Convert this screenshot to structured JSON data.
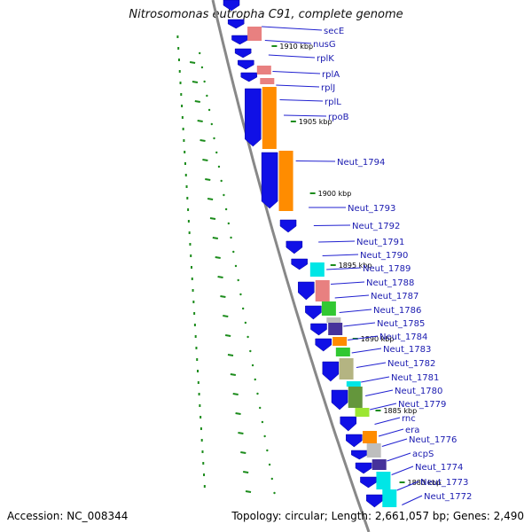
{
  "title": "Nitrosomonas eutropha C91, complete genome",
  "accession": "Accession: NC_008344",
  "summary": "Topology: circular; Length: 2,661,057 bp; Genes: 2,490",
  "colors": {
    "blue": "#1010e6",
    "orange": "#ff8c00",
    "pink": "#e88080",
    "green": "#32c832",
    "cyan": "#00e6e6",
    "purple": "#46329b",
    "olive": "#b4b482",
    "darkgreen": "#64963c",
    "lime": "#9be632",
    "gray": "#bebebe",
    "label": "#1a1ab0",
    "leader": "#2020d0"
  },
  "kbp_ticks": [
    "1910 kbp",
    "1905 kbp",
    "1900 kbp",
    "1895 kbp",
    "1890 kbp",
    "1885 kbp",
    "1880 kbp"
  ],
  "gene_labels": [
    "secE",
    "nusG",
    "rplK",
    "rplA",
    "rplJ",
    "rplL",
    "rpoB",
    "Neut_1794",
    "Neut_1793",
    "Neut_1792",
    "Neut_1791",
    "Neut_1790",
    "Neut_1789",
    "Neut_1788",
    "Neut_1787",
    "Neut_1786",
    "Neut_1785",
    "Neut_1784",
    "Neut_1783",
    "Neut_1782",
    "Neut_1781",
    "Neut_1780",
    "Neut_1779",
    "rnc",
    "era",
    "Neut_1776",
    "acpS",
    "Neut_1774",
    "Neut_1773",
    "Neut_1772"
  ]
}
